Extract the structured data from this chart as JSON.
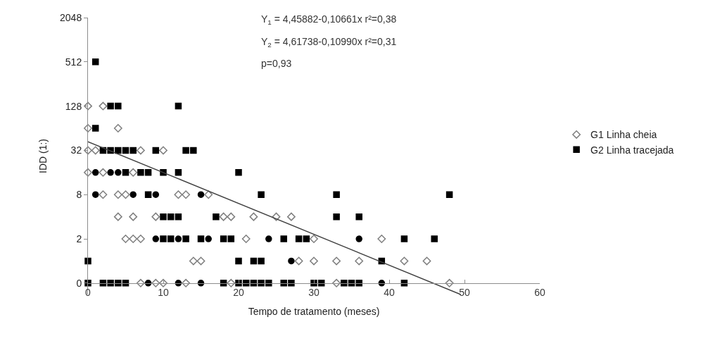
{
  "chart_data": {
    "type": "scatter",
    "xlabel": "Tempo de tratamento (meses)",
    "ylabel": "IDD (1:)",
    "xlim": [
      0,
      60
    ],
    "xticks": [
      0,
      10,
      20,
      30,
      40,
      50,
      60
    ],
    "ylim": [
      0.35,
      2048
    ],
    "yticks": [
      {
        "value": 0.5,
        "label": "0"
      },
      2,
      8,
      32,
      128,
      512,
      2048
    ],
    "log": "y",
    "legend": "right",
    "annotations": [
      "Y$_{1}$ = 4,45882-0,10661x r²=0,38",
      "Y$_{2}$ = 4,61738-0,10990x r²=0,31",
      "p=0,93"
    ],
    "series": [
      {
        "name": "G1 Linha cheia",
        "color": "#7f7f7f",
        "marker": "diamond",
        "x": [
          0,
          2,
          0,
          4,
          0,
          1,
          7,
          10,
          0,
          2,
          6,
          2,
          4,
          5,
          12,
          13,
          16,
          4,
          6,
          9,
          18,
          19,
          22,
          25,
          27,
          5,
          6,
          7,
          21,
          30,
          39,
          14,
          15,
          28,
          30,
          33,
          36,
          42,
          45,
          7,
          9,
          10,
          13,
          19,
          33,
          48
        ],
        "values": [
          128,
          128,
          64,
          64,
          32,
          32,
          32,
          32,
          16,
          16,
          16,
          8,
          8,
          8,
          8,
          8,
          8,
          4,
          4,
          4,
          4,
          4,
          4,
          4,
          4,
          2,
          2,
          2,
          2,
          2,
          2,
          1,
          1,
          1,
          1,
          1,
          1,
          1,
          1,
          0.5,
          0.5,
          0.5,
          0.5,
          0.5,
          0.5,
          0.5
        ]
      },
      {
        "name": "G2 Linha tracejada",
        "color": "#000000",
        "marker": "square",
        "x": [
          1,
          3,
          4,
          12,
          1,
          2,
          3,
          4,
          5,
          6,
          9,
          13,
          14,
          5,
          7,
          8,
          10,
          12,
          20,
          8,
          23,
          33,
          48,
          10,
          11,
          12,
          17,
          33,
          36,
          10,
          11,
          13,
          15,
          18,
          19,
          26,
          28,
          29,
          42,
          46,
          0,
          20,
          22,
          23,
          39,
          0,
          2,
          3,
          4,
          5,
          18,
          20,
          21,
          22,
          23,
          24,
          26,
          27,
          30,
          31,
          34,
          35,
          36,
          42
        ],
        "values": [
          512,
          128,
          128,
          128,
          64,
          32,
          32,
          32,
          32,
          32,
          32,
          32,
          32,
          16,
          16,
          16,
          16,
          16,
          16,
          8,
          8,
          8,
          8,
          4,
          4,
          4,
          4,
          4,
          4,
          2,
          2,
          2,
          2,
          2,
          2,
          2,
          2,
          2,
          2,
          2,
          1,
          1,
          1,
          1,
          1,
          0.5,
          0.5,
          0.5,
          0.5,
          0.5,
          0.5,
          0.5,
          0.5,
          0.5,
          0.5,
          0.5,
          0.5,
          0.5,
          0.5,
          0.5,
          0.5,
          0.5,
          0.5,
          0.5
        ]
      },
      {
        "color": "#000000",
        "marker": "circle",
        "x": [
          1,
          3,
          4,
          1,
          6,
          9,
          15,
          9,
          12,
          16,
          24,
          36,
          27,
          8,
          12,
          15,
          39
        ],
        "values": [
          16,
          16,
          16,
          8,
          8,
          8,
          8,
          2,
          2,
          2,
          2,
          2,
          1,
          0.5,
          0.5,
          0.5,
          0.5
        ]
      },
      {
        "type": "line",
        "color": "#404040",
        "marker": "none",
        "x": [
          0,
          49.5
        ],
        "values": [
          42,
          0.35
        ]
      }
    ]
  }
}
